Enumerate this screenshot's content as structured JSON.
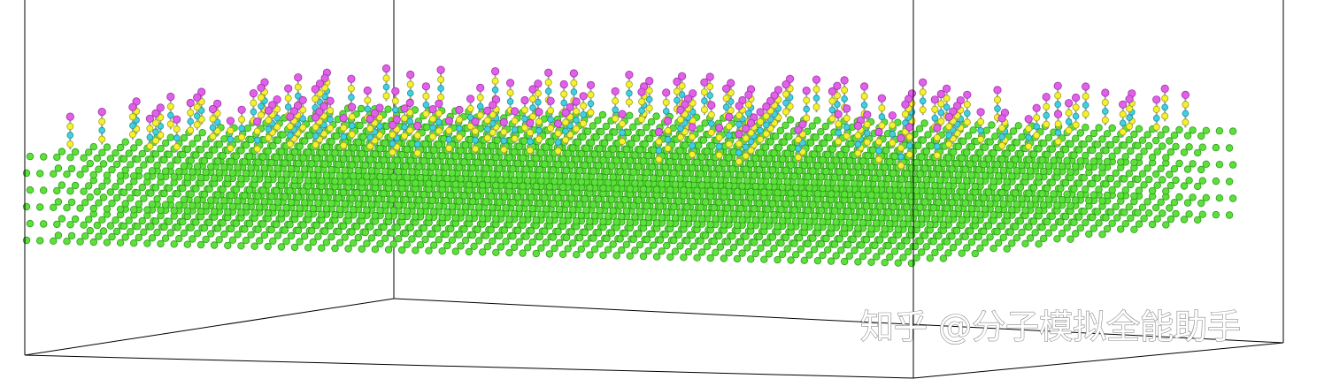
{
  "watermark": "知乎 @分子模拟全能助手"
}
